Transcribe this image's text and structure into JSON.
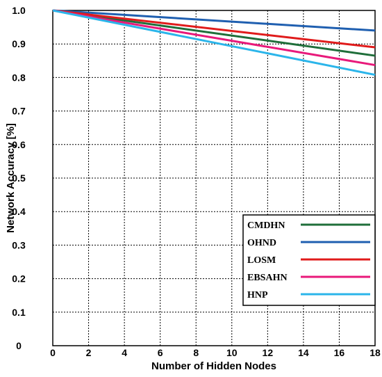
{
  "chart_data": {
    "type": "line",
    "title": "",
    "xlabel": "Number of Hidden Nodes",
    "ylabel": "Network Accuracy [%]",
    "x": [
      0,
      18
    ],
    "xlim": [
      0,
      18
    ],
    "ylim": [
      0,
      1.0
    ],
    "x_ticks": [
      "0",
      "2",
      "4",
      "6",
      "8",
      "10",
      "12",
      "14",
      "16",
      "18"
    ],
    "y_ticks": [
      "0",
      "0.1",
      "0.2",
      "0.3",
      "0.4",
      "0.5",
      "0.6",
      "0.7",
      "0.8",
      "0.9",
      "1.0"
    ],
    "grid": true,
    "legend_position": "bottom-right",
    "series": [
      {
        "name": "CMDHN",
        "color": "#1f6e3a",
        "values": [
          1.0,
          0.865
        ]
      },
      {
        "name": "OHND",
        "color": "#1f5fb0",
        "values": [
          1.0,
          0.94
        ]
      },
      {
        "name": "LOSM",
        "color": "#e01b1b",
        "values": [
          1.0,
          0.89
        ]
      },
      {
        "name": "EBSAHN",
        "color": "#e8197a",
        "values": [
          1.0,
          0.837
        ]
      },
      {
        "name": "HNP",
        "color": "#2bb5ea",
        "values": [
          1.0,
          0.808
        ]
      }
    ]
  }
}
